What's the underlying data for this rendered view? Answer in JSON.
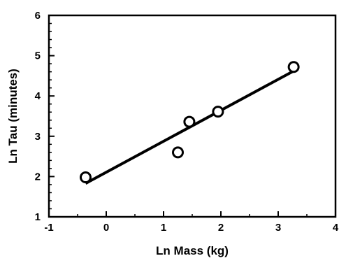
{
  "chart_data": {
    "type": "scatter",
    "title": "",
    "xlabel": "Ln Mass (kg)",
    "ylabel": "Ln Tau (minutes)",
    "xlim": [
      -1,
      4
    ],
    "ylim": [
      1,
      6
    ],
    "xticks": [
      -1,
      0,
      1,
      2,
      3,
      4
    ],
    "yticks": [
      1,
      2,
      3,
      4,
      5,
      6
    ],
    "xtick_labels": [
      "-1",
      "0",
      "1",
      "2",
      "3",
      "4"
    ],
    "ytick_labels": [
      "1",
      "2",
      "3",
      "4",
      "5",
      "6"
    ],
    "grid": false,
    "legend": "none",
    "series": [
      {
        "marker": "open-circle",
        "x": [
          -0.36,
          1.25,
          1.45,
          1.95,
          3.27
        ],
        "y": [
          1.98,
          2.6,
          3.36,
          3.61,
          4.72
        ]
      }
    ],
    "fit_line": {
      "x": [
        -0.36,
        3.27
      ],
      "y": [
        1.83,
        4.62
      ]
    },
    "colors": {
      "marks": "#000000",
      "background": "#ffffff"
    }
  }
}
